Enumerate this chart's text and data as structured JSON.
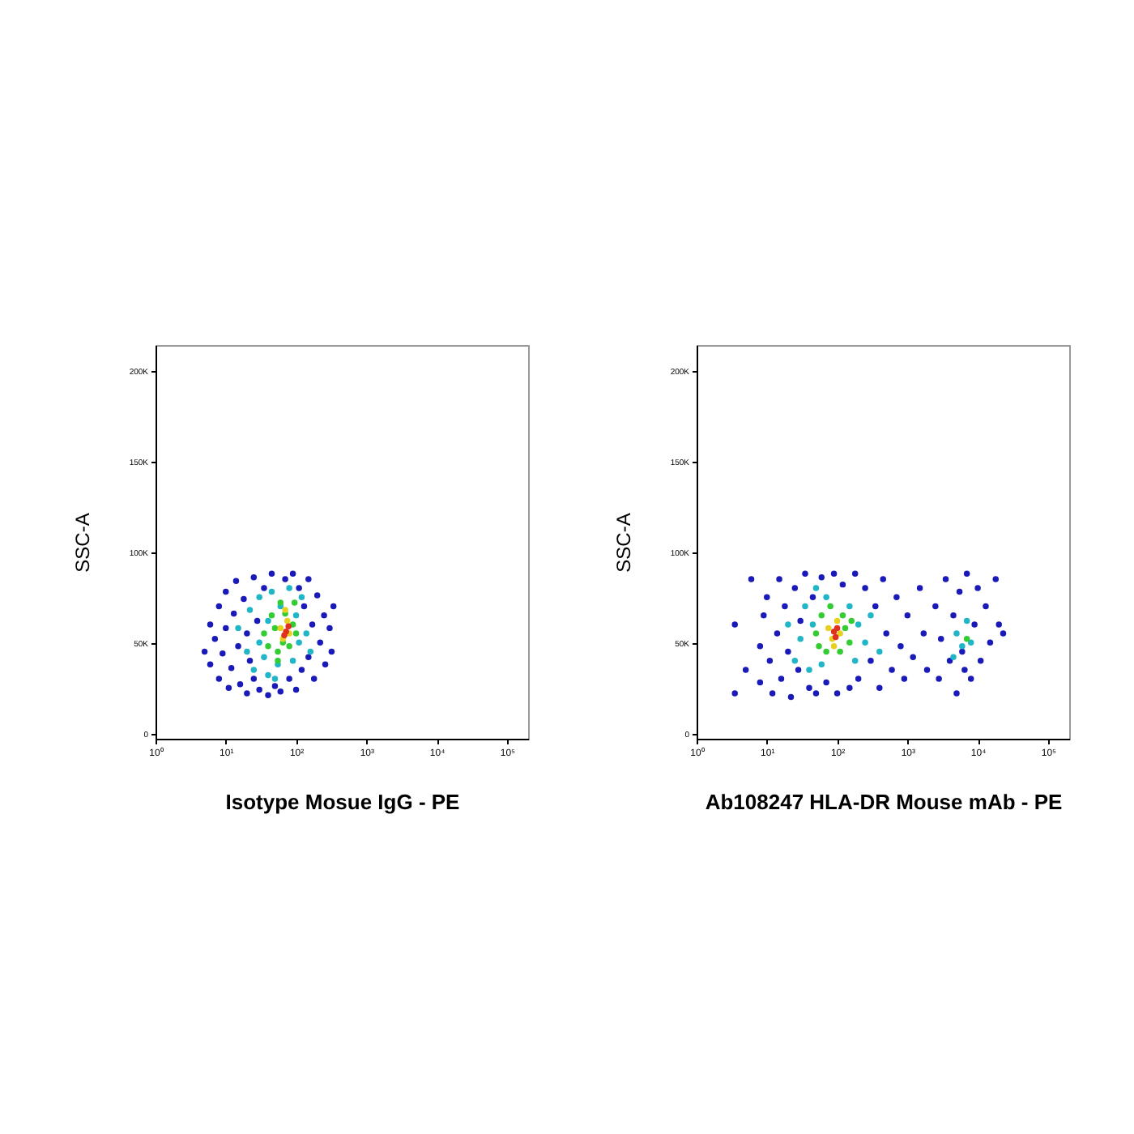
{
  "chart_data": [
    {
      "type": "scatter",
      "xlabel": "Isotype Mosue IgG - PE",
      "ylabel": "SSC-A",
      "log": "x",
      "grid": false,
      "marker": "circle",
      "xlim": [
        1,
        200000
      ],
      "ylim": [
        -3000,
        214000
      ],
      "xticks": [
        {
          "value": 1,
          "label": "10⁰"
        },
        {
          "value": 10,
          "label": "10¹"
        },
        {
          "value": 100,
          "label": "10²"
        },
        {
          "value": 1000,
          "label": "10³"
        },
        {
          "value": 10000,
          "label": "10⁴"
        },
        {
          "value": 100000,
          "label": "10⁵"
        }
      ],
      "yticks": [
        0,
        {
          "value": 50000,
          "label": "50K"
        },
        {
          "value": 100000,
          "label": "100K"
        },
        {
          "value": 150000,
          "label": "150K"
        },
        {
          "value": 200000,
          "label": "200K"
        }
      ],
      "series": [
        {
          "color": "#1a1ab8",
          "x": [
            5,
            6,
            6,
            7,
            8,
            8,
            9,
            10,
            10,
            11,
            12,
            13,
            14,
            15,
            16,
            18,
            20,
            20,
            22,
            25,
            25,
            28,
            30,
            35,
            40,
            45,
            50,
            60,
            70,
            80,
            90,
            100,
            110,
            120,
            130,
            150,
            150,
            170,
            180,
            200,
            220,
            250,
            260,
            300,
            320,
            340
          ],
          "values": [
            45000,
            60000,
            38000,
            52000,
            70000,
            30000,
            44000,
            78000,
            58000,
            25000,
            36000,
            66000,
            84000,
            48000,
            27000,
            74000,
            55000,
            22000,
            40000,
            86000,
            30000,
            62000,
            24000,
            80000,
            21000,
            88000,
            26000,
            23000,
            85000,
            30000,
            88000,
            24000,
            80000,
            35000,
            70000,
            42000,
            85000,
            60000,
            30000,
            76000,
            50000,
            65000,
            38000,
            58000,
            45000,
            70000
          ]
        },
        {
          "color": "#21b5c8",
          "x": [
            15,
            20,
            22,
            25,
            30,
            30,
            35,
            40,
            40,
            45,
            55,
            60,
            90,
            100,
            110,
            120,
            140,
            160,
            50,
            80
          ],
          "values": [
            58000,
            45000,
            68000,
            35000,
            50000,
            75000,
            42000,
            62000,
            32000,
            78000,
            38000,
            70000,
            40000,
            65000,
            50000,
            75000,
            55000,
            45000,
            30000,
            80000
          ]
        },
        {
          "color": "#33cc33",
          "x": [
            35,
            40,
            45,
            50,
            55,
            60,
            65,
            70,
            80,
            90,
            95,
            55,
            100
          ],
          "values": [
            55000,
            48000,
            65000,
            58000,
            45000,
            72000,
            50000,
            66000,
            48000,
            60000,
            72000,
            40000,
            55000
          ]
        },
        {
          "color": "#e8d020",
          "x": [
            60,
            65,
            75,
            80,
            70
          ],
          "values": [
            58000,
            52000,
            62000,
            55000,
            68000
          ]
        },
        {
          "color": "#e0301e",
          "x": [
            72,
            78,
            68
          ],
          "values": [
            56000,
            59000,
            54000
          ]
        }
      ]
    },
    {
      "type": "scatter",
      "xlabel": "Ab108247 HLA-DR Mouse mAb - PE",
      "ylabel": "SSC-A",
      "log": "x",
      "grid": false,
      "marker": "circle",
      "xlim": [
        1,
        200000
      ],
      "ylim": [
        -3000,
        214000
      ],
      "xticks": [
        {
          "value": 1,
          "label": "10⁰"
        },
        {
          "value": 10,
          "label": "10¹"
        },
        {
          "value": 100,
          "label": "10²"
        },
        {
          "value": 1000,
          "label": "10³"
        },
        {
          "value": 10000,
          "label": "10⁴"
        },
        {
          "value": 100000,
          "label": "10⁵"
        }
      ],
      "yticks": [
        0,
        {
          "value": 50000,
          "label": "50K"
        },
        {
          "value": 100000,
          "label": "100K"
        },
        {
          "value": 150000,
          "label": "150K"
        },
        {
          "value": 200000,
          "label": "200K"
        }
      ],
      "series": [
        {
          "color": "#1a1ab8",
          "x": [
            3.5,
            3.5,
            5,
            6,
            8,
            8,
            9,
            10,
            11,
            12,
            14,
            15,
            16,
            18,
            20,
            22,
            25,
            28,
            30,
            35,
            40,
            45,
            50,
            60,
            70,
            90,
            100,
            120,
            150,
            180,
            200,
            250,
            300,
            350,
            400,
            450,
            500,
            600,
            700,
            800,
            900,
            1000,
            1200,
            1500,
            1700,
            1900,
            2500,
            2800,
            3000,
            3500,
            4000,
            4500,
            5000,
            5500,
            6000,
            7000,
            8000,
            9000,
            10000,
            11000,
            13000,
            15000,
            18000,
            20000,
            23000,
            6500
          ],
          "values": [
            60000,
            22000,
            35000,
            85000,
            48000,
            28000,
            65000,
            75000,
            40000,
            22000,
            55000,
            85000,
            30000,
            70000,
            45000,
            20000,
            80000,
            35000,
            62000,
            88000,
            25000,
            75000,
            22000,
            86000,
            28000,
            88000,
            22000,
            82000,
            25000,
            88000,
            30000,
            80000,
            40000,
            70000,
            25000,
            85000,
            55000,
            35000,
            75000,
            48000,
            30000,
            65000,
            42000,
            80000,
            55000,
            35000,
            70000,
            30000,
            52000,
            85000,
            40000,
            65000,
            22000,
            78000,
            45000,
            88000,
            30000,
            60000,
            80000,
            40000,
            70000,
            50000,
            85000,
            60000,
            55000,
            35000
          ]
        },
        {
          "color": "#21b5c8",
          "x": [
            20,
            25,
            30,
            35,
            40,
            45,
            50,
            60,
            150,
            180,
            200,
            250,
            300,
            400,
            5000,
            6000,
            7000,
            8000,
            4500,
            70
          ],
          "values": [
            60000,
            40000,
            52000,
            70000,
            35000,
            60000,
            80000,
            38000,
            70000,
            40000,
            60000,
            50000,
            65000,
            45000,
            55000,
            48000,
            62000,
            50000,
            42000,
            75000
          ]
        },
        {
          "color": "#33cc33",
          "x": [
            50,
            55,
            60,
            70,
            80,
            110,
            120,
            130,
            150,
            160,
            7000
          ],
          "values": [
            55000,
            48000,
            65000,
            45000,
            70000,
            45000,
            65000,
            58000,
            50000,
            62000,
            52000
          ]
        },
        {
          "color": "#e8d020",
          "x": [
            75,
            85,
            100,
            110,
            90
          ],
          "values": [
            58000,
            52000,
            62000,
            55000,
            48000
          ]
        },
        {
          "color": "#e0301e",
          "x": [
            90,
            95,
            100
          ],
          "values": [
            56000,
            53000,
            58000
          ]
        }
      ]
    }
  ]
}
